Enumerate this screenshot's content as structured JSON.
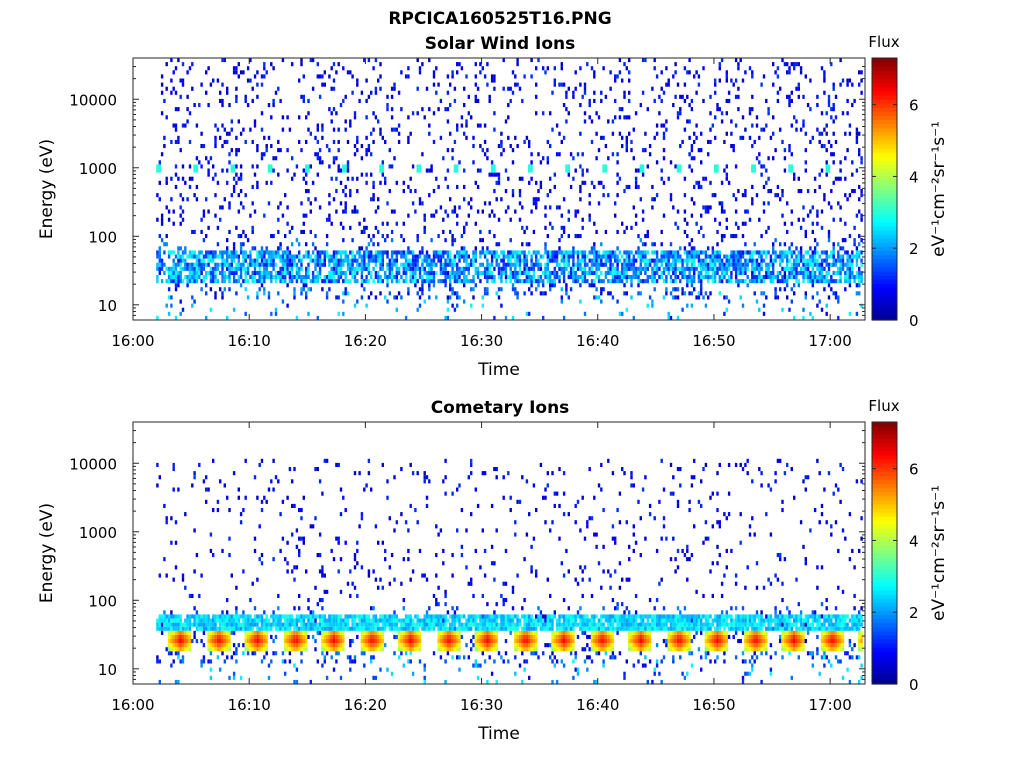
{
  "figure_title": "RPCICA160525T16.PNG",
  "colors": {
    "colormap": [
      "#00008f",
      "#0000ff",
      "#0080ff",
      "#00ffff",
      "#80ff80",
      "#ffff00",
      "#ff8000",
      "#ff0000",
      "#800000"
    ]
  },
  "chart_data": [
    {
      "type": "heatmap",
      "title": "Solar Wind Ions",
      "xlabel": "Time",
      "ylabel": "Energy (eV)",
      "yscale": "log",
      "ylim": [
        6,
        40000
      ],
      "xlim": [
        "16:00",
        "17:03"
      ],
      "x_ticks": [
        "16:00",
        "16:10",
        "16:20",
        "16:30",
        "16:40",
        "16:50",
        "17:00"
      ],
      "y_ticks": [
        "10",
        "100",
        "1000",
        "10000"
      ],
      "colorbar": {
        "label": "Flux",
        "units": "eV⁻¹cm⁻²sr⁻¹s⁻¹",
        "ticks": [
          "0",
          "2",
          "4",
          "6"
        ],
        "range": [
          0,
          7.3
        ]
      },
      "features": {
        "data_start": "16:02",
        "background": "sparse low-flux (~0.5-1.5) pixels from ~15 eV to ~40 keV",
        "band": {
          "energy_eV": [
            20,
            60
          ],
          "flux": [
            1,
            3
          ]
        },
        "spots": {
          "energy_eV": 1000,
          "flux": 3,
          "period_min": 3.2
        }
      }
    },
    {
      "type": "heatmap",
      "title": "Cometary Ions",
      "xlabel": "Time",
      "ylabel": "Energy (eV)",
      "yscale": "log",
      "ylim": [
        6,
        40000
      ],
      "xlim": [
        "16:00",
        "17:03"
      ],
      "x_ticks": [
        "16:00",
        "16:10",
        "16:20",
        "16:30",
        "16:40",
        "16:50",
        "17:00"
      ],
      "y_ticks": [
        "10",
        "100",
        "1000",
        "10000"
      ],
      "colorbar": {
        "label": "Flux",
        "units": "eV⁻¹cm⁻²sr⁻¹s⁻¹",
        "ticks": [
          "0",
          "2",
          "4",
          "6"
        ],
        "range": [
          0,
          7.3
        ]
      },
      "features": {
        "data_start": "16:02",
        "background": "sparse low-flux (~0.5-1) pixels up to ~10 keV",
        "band": {
          "energy_eV": [
            35,
            60
          ],
          "flux": [
            2,
            3
          ]
        },
        "bursts": {
          "energy_eV": [
            18,
            35
          ],
          "flux": [
            5,
            6.5
          ],
          "period_min": 3.3,
          "duration_min": 2
        }
      }
    }
  ]
}
